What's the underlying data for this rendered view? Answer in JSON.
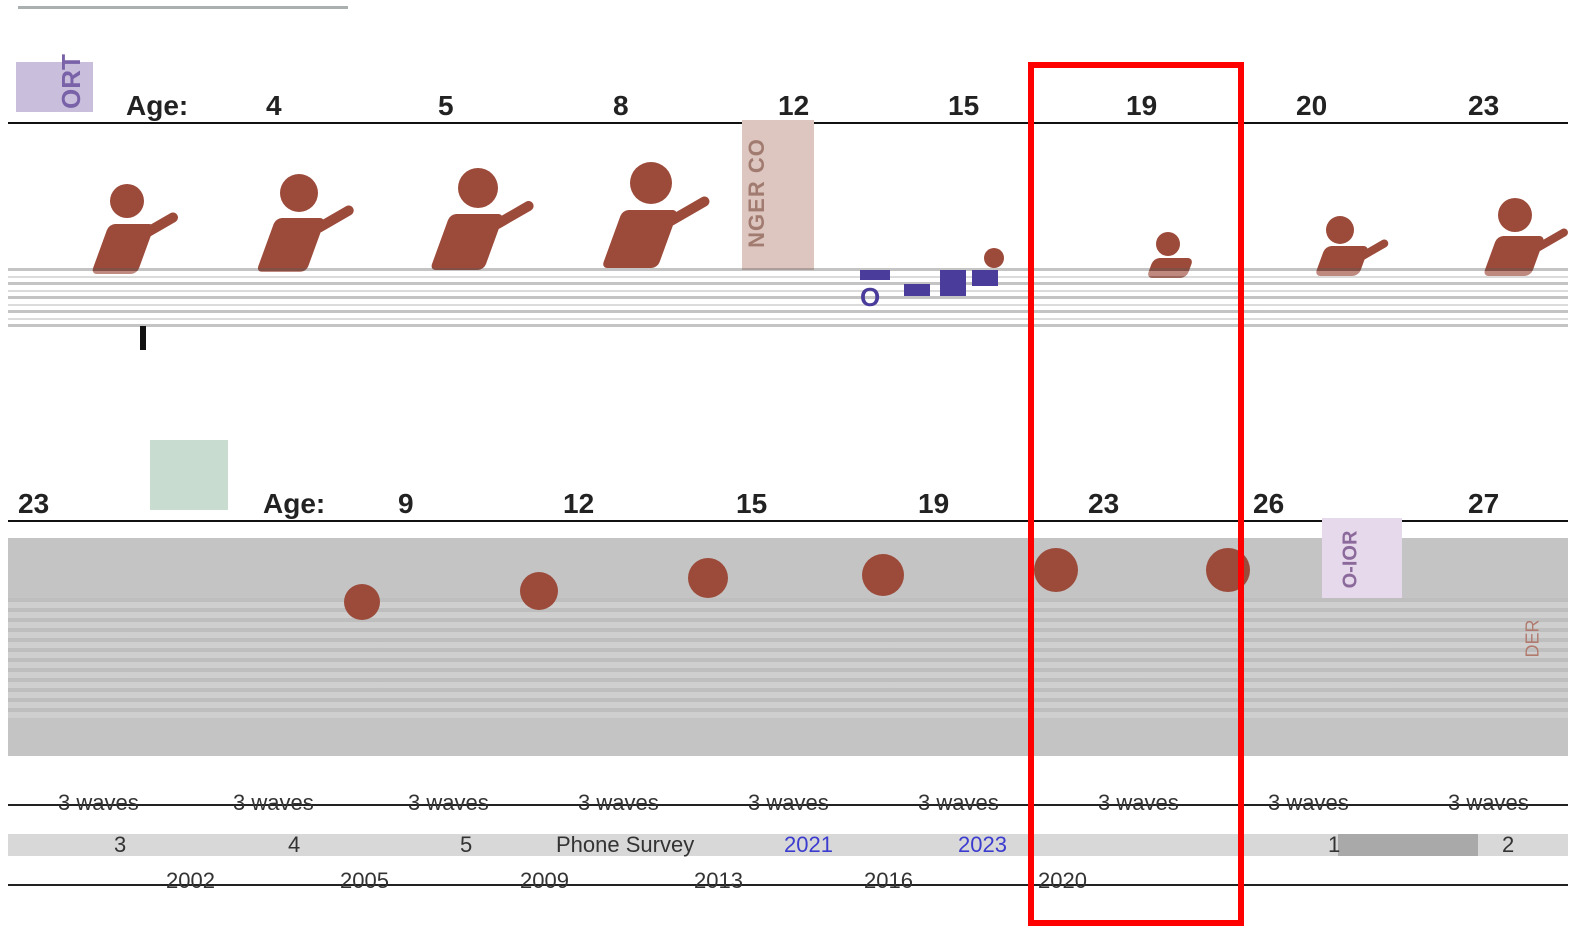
{
  "panel_tabs": {
    "top_left_tab": "ORT",
    "cohort_tab_1": "NGER CO",
    "cohort_tab_2": "O-IOR",
    "right_tag": "DER",
    "small_c_tag": "O"
  },
  "row1": {
    "age_prefix": "Age:",
    "ages": [
      "4",
      "5",
      "8",
      "12",
      "15",
      "19",
      "20",
      "23"
    ]
  },
  "row2": {
    "row_label_left": "23",
    "age_prefix": "Age:",
    "ages": [
      "9",
      "12",
      "15",
      "19",
      "23",
      "26",
      "27"
    ]
  },
  "bottom": {
    "row_a": [
      "3 waves",
      "3 waves",
      "3 waves",
      "3 waves",
      "3 waves",
      "3 waves",
      "3 waves",
      "3 waves",
      "3 waves"
    ],
    "row_b": [
      "3",
      "4",
      "5",
      "Phone Survey",
      "2021",
      "2023",
      "1",
      "2"
    ],
    "row_c": [
      "2002",
      "2005",
      "2009",
      "2013",
      "2016",
      "2020"
    ]
  },
  "colors": {
    "figure": "#9c4a3a",
    "highlight_frame": "#ff0000",
    "gray_band": "#c4c4c4"
  }
}
